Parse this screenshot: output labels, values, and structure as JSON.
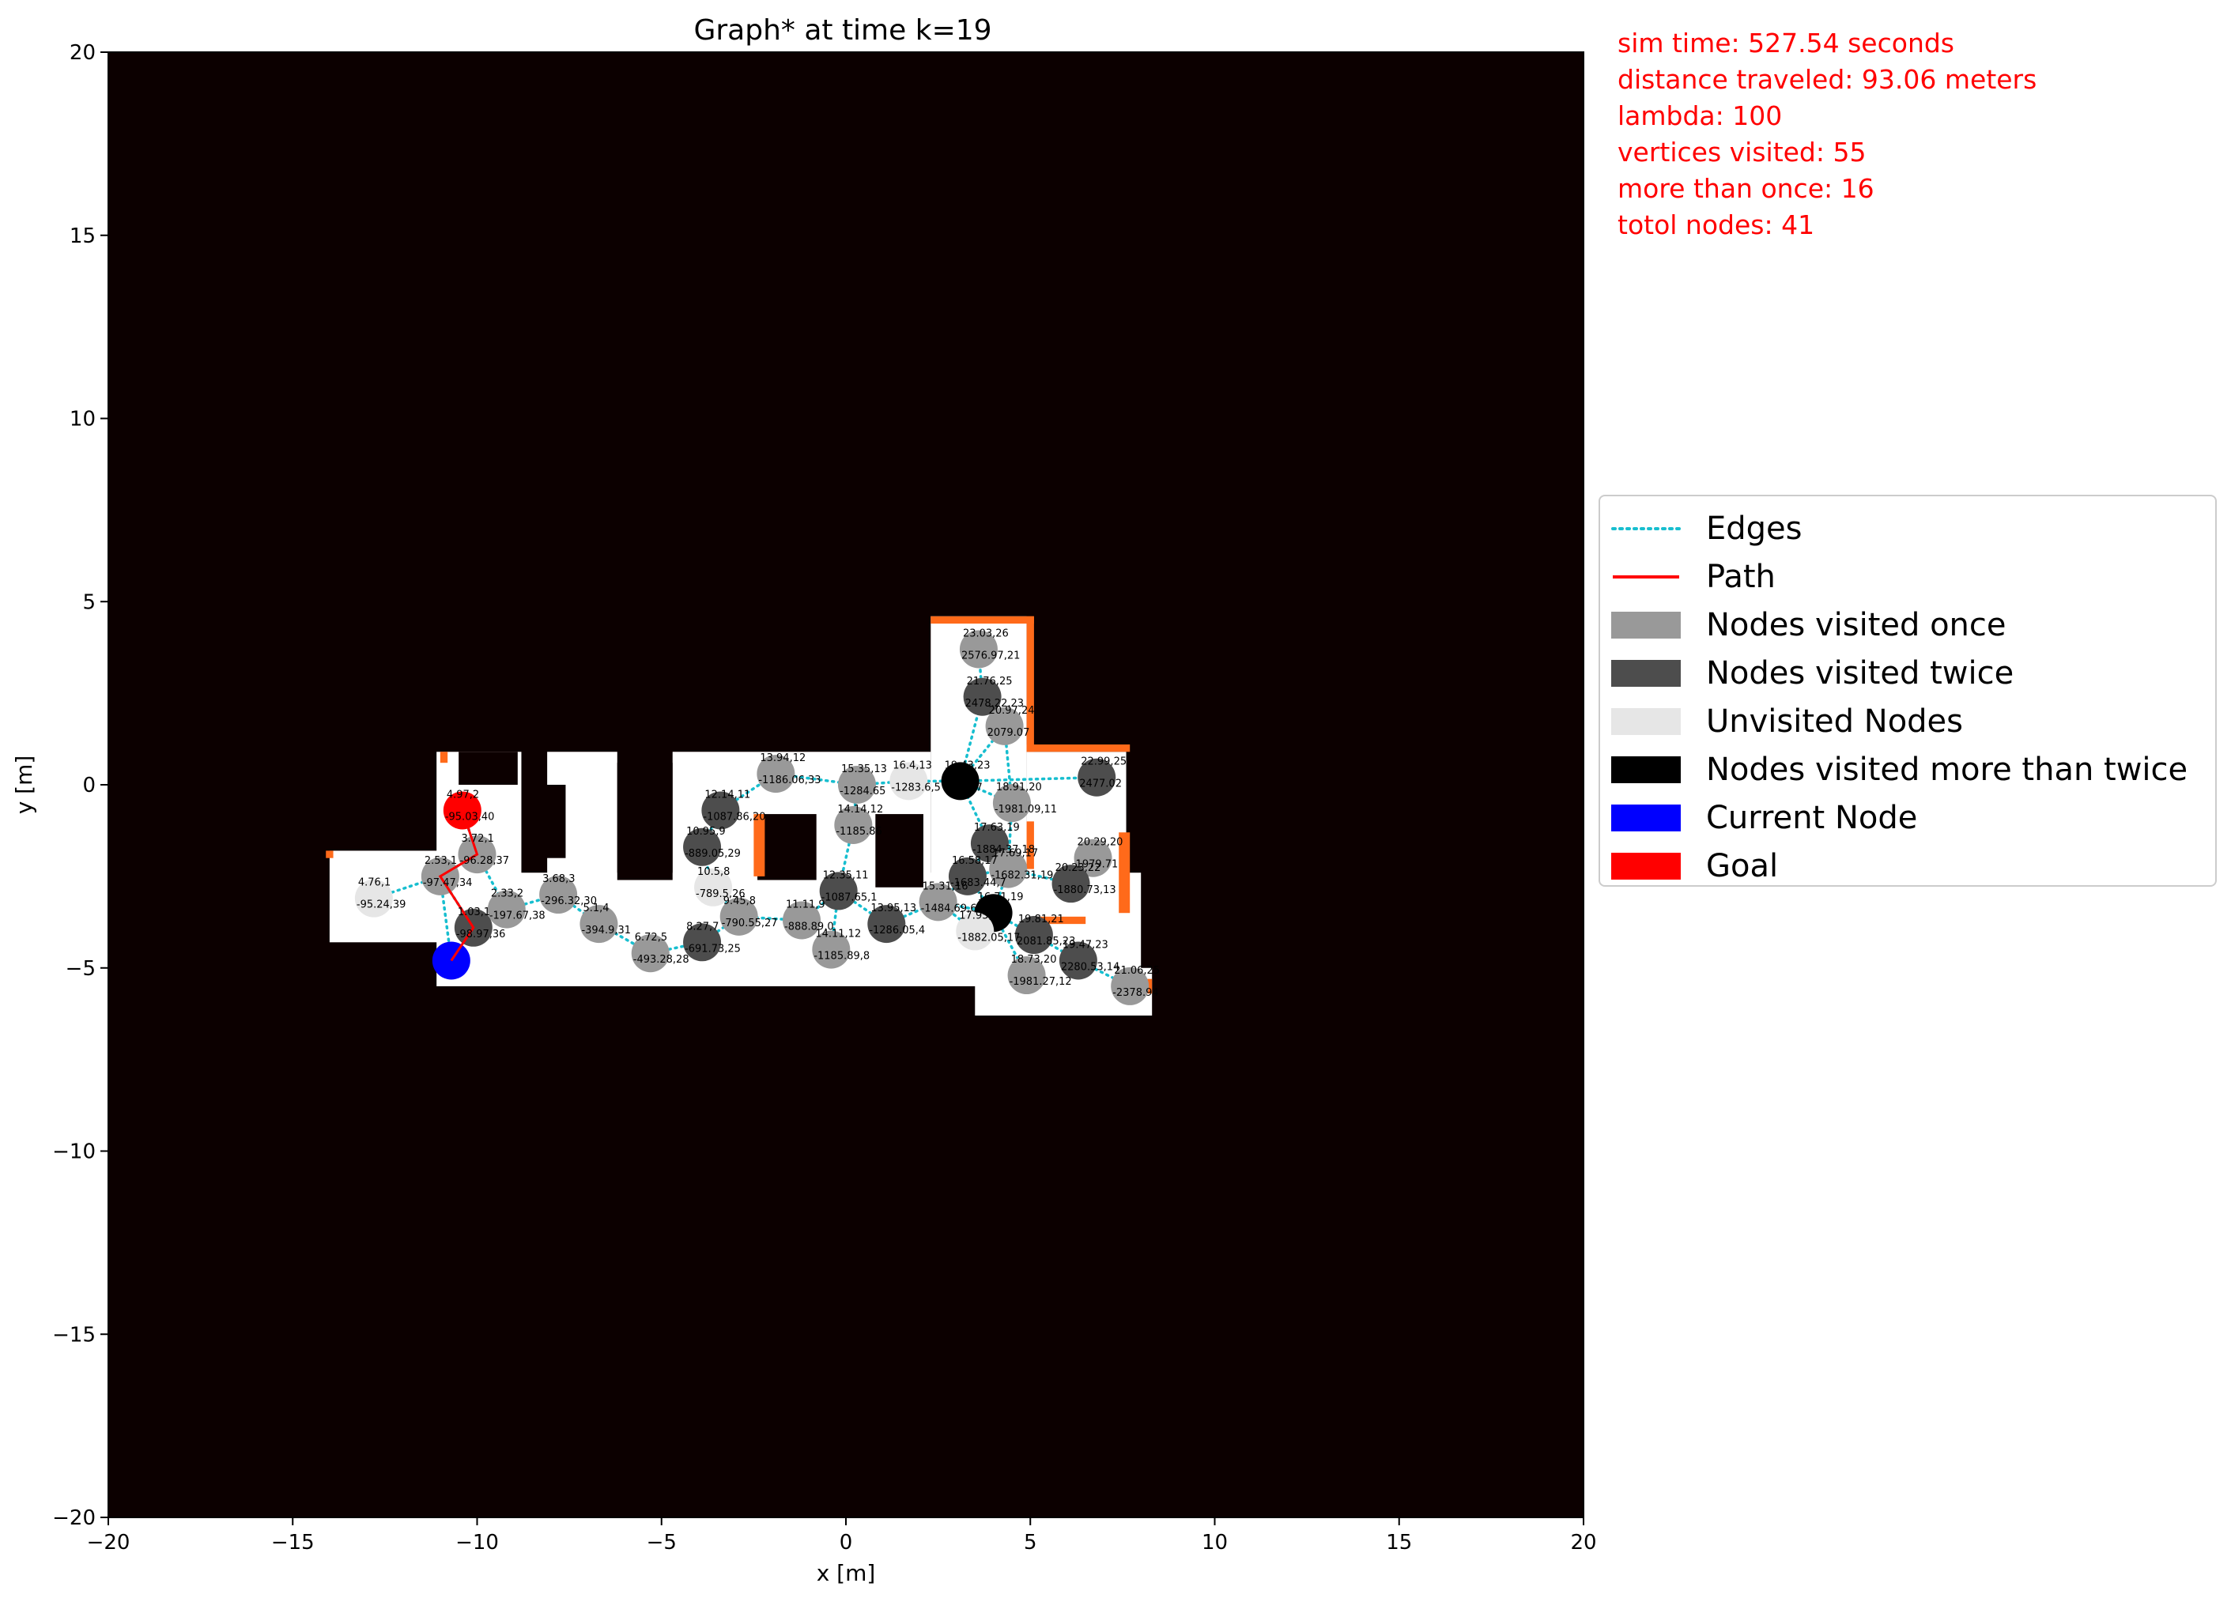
{
  "chart_data": {
    "type": "scatter",
    "title": "Graph* at time k=19",
    "xlabel": "x [m]",
    "ylabel": "y [m]",
    "xlim": [
      -20,
      20
    ],
    "ylim": [
      -20,
      20
    ],
    "xticks": [
      -20,
      -15,
      -10,
      -5,
      0,
      5,
      10,
      15,
      20
    ],
    "yticks": [
      -20,
      -15,
      -10,
      -5,
      0,
      5,
      10,
      15,
      20
    ],
    "grid": false,
    "legend_position": "center-right outside",
    "colors": {
      "background": "#0c0000",
      "free_space": "#ffffff",
      "boundary": "#ff6a1a",
      "edges": "#17becf",
      "path": "#ff0000",
      "visited_once": "#999999",
      "visited_twice": "#4d4d4d",
      "unvisited": "#e6e6e6",
      "visited_more": "#000000",
      "current": "#0000ff",
      "goal": "#ff0000"
    },
    "free_regions": [
      {
        "x": [
          -14.0,
          -10.0
        ],
        "y": [
          -4.3,
          -1.8
        ]
      },
      {
        "x": [
          -11.1,
          8.0
        ],
        "y": [
          -5.5,
          -2.4
        ]
      },
      {
        "x": [
          -11.1,
          -8.8
        ],
        "y": [
          -3.0,
          0.9
        ]
      },
      {
        "x": [
          -8.1,
          -6.2
        ],
        "y": [
          -2.6,
          0.9
        ]
      },
      {
        "x": [
          -4.7,
          2.3
        ],
        "y": [
          -2.6,
          0.9
        ]
      },
      {
        "x": [
          2.3,
          4.9
        ],
        "y": [
          -2.6,
          4.6
        ]
      },
      {
        "x": [
          4.9,
          7.6
        ],
        "y": [
          -3.7,
          0.9
        ]
      },
      {
        "x": [
          3.5,
          8.3
        ],
        "y": [
          -6.3,
          -5.0
        ]
      },
      {
        "x": [
          5.4,
          7.9
        ],
        "y": [
          -5.2,
          -3.8
        ]
      }
    ],
    "obstacles": [
      {
        "x": [
          -2.4,
          -0.8
        ],
        "y": [
          -2.6,
          -0.8
        ]
      },
      {
        "x": [
          0.8,
          2.1
        ],
        "y": [
          -2.8,
          -0.8
        ]
      },
      {
        "x": [
          -8.6,
          -7.6
        ],
        "y": [
          -2.0,
          0.0
        ]
      },
      {
        "x": [
          -6.2,
          -4.7
        ],
        "y": [
          -2.6,
          0.6
        ]
      },
      {
        "x": [
          -10.5,
          -8.9
        ],
        "y": [
          0.0,
          0.9
        ]
      }
    ],
    "boundaries": [
      {
        "x": [
          2.3,
          5.1
        ],
        "y": [
          4.4,
          4.6
        ]
      },
      {
        "x": [
          4.9,
          5.1
        ],
        "y": [
          0.9,
          4.6
        ]
      },
      {
        "x": [
          4.9,
          7.7
        ],
        "y": [
          0.9,
          1.1
        ]
      },
      {
        "x": [
          7.4,
          7.7
        ],
        "y": [
          -3.5,
          -1.3
        ]
      },
      {
        "x": [
          -2.5,
          -2.2
        ],
        "y": [
          -2.5,
          -0.8
        ]
      },
      {
        "x": [
          4.9,
          5.1
        ],
        "y": [
          -2.3,
          -1.0
        ]
      },
      {
        "x": [
          -14.1,
          -13.9
        ],
        "y": [
          -2.0,
          -1.8
        ]
      },
      {
        "x": [
          -11.0,
          -10.8
        ],
        "y": [
          0.6,
          0.9
        ]
      },
      {
        "x": [
          7.9,
          8.3
        ],
        "y": [
          -5.7,
          -5.3
        ]
      },
      {
        "x": [
          5.0,
          6.5
        ],
        "y": [
          -3.8,
          -3.6
        ]
      }
    ],
    "nodes": [
      {
        "x": 3.6,
        "y": 3.7,
        "state": "visited_once",
        "label1": "23.03,26",
        "label2": "2576.97,21"
      },
      {
        "x": 3.7,
        "y": 2.4,
        "state": "visited_twice",
        "label1": "21.76,25",
        "label2": "2478.22,23"
      },
      {
        "x": 4.3,
        "y": 1.6,
        "state": "visited_once",
        "label1": "20.97,24",
        "label2": "2079.07"
      },
      {
        "x": 3.1,
        "y": 0.1,
        "state": "visited_more",
        "label1": "19.43,23",
        "label2": "-1755.7"
      },
      {
        "x": 4.5,
        "y": -0.5,
        "state": "visited_once",
        "label1": "18.91,20",
        "label2": "-1981.09,11"
      },
      {
        "x": 6.8,
        "y": 0.2,
        "state": "visited_twice",
        "label1": "22.99,25",
        "label2": "2477.02"
      },
      {
        "x": 6.7,
        "y": -2.0,
        "state": "visited_once",
        "label1": "20.29,20",
        "label2": "1979.71"
      },
      {
        "x": 6.1,
        "y": -2.7,
        "state": "visited_twice",
        "label1": "20.23,22",
        "label2": "-1880.73,13"
      },
      {
        "x": 3.9,
        "y": -1.6,
        "state": "visited_twice",
        "label1": "17.63,19",
        "label2": "-1884.37,18"
      },
      {
        "x": 4.4,
        "y": -2.3,
        "state": "visited_once",
        "label1": "17.69,17",
        "label2": "-1682.31,19"
      },
      {
        "x": 3.3,
        "y": -2.5,
        "state": "visited_twice",
        "label1": "16.58,17",
        "label2": "-1683.44,7"
      },
      {
        "x": 4.0,
        "y": -3.5,
        "state": "visited_more",
        "label1": "16.71,19",
        "label2": ""
      },
      {
        "x": 2.5,
        "y": -3.2,
        "state": "visited_once",
        "label1": "15.31,16",
        "label2": "-1484.69,6"
      },
      {
        "x": 3.5,
        "y": -4.0,
        "state": "unvisited",
        "label1": "17.95,19",
        "label2": "-1882.05,17"
      },
      {
        "x": 5.1,
        "y": -4.1,
        "state": "visited_twice",
        "label1": "19.81,21",
        "label2": "2081.85,23"
      },
      {
        "x": 4.9,
        "y": -5.2,
        "state": "visited_once",
        "label1": "18.73,20",
        "label2": "-1981.27,12"
      },
      {
        "x": 6.3,
        "y": -4.8,
        "state": "visited_twice",
        "label1": "19.47,23",
        "label2": "2280.53,14"
      },
      {
        "x": 7.7,
        "y": -5.5,
        "state": "visited_once",
        "label1": "21.06,25",
        "label2": "-2378.94"
      },
      {
        "x": 1.1,
        "y": -3.8,
        "state": "visited_twice",
        "label1": "13.95,13",
        "label2": "-1286.05,4"
      },
      {
        "x": -0.2,
        "y": -2.9,
        "state": "visited_twice",
        "label1": "12.35,11",
        "label2": "-1087.65,1"
      },
      {
        "x": 0.2,
        "y": -1.1,
        "state": "visited_once",
        "label1": "14.14,12",
        "label2": "-1185.86"
      },
      {
        "x": 0.3,
        "y": 0.0,
        "state": "visited_once",
        "label1": "15.35,13",
        "label2": "-1284.65"
      },
      {
        "x": 1.7,
        "y": 0.1,
        "state": "unvisited",
        "label1": "16.4,13",
        "label2": "-1283.6,5"
      },
      {
        "x": -1.9,
        "y": 0.3,
        "state": "visited_once",
        "label1": "13.94,12",
        "label2": "-1186.06,33"
      },
      {
        "x": -3.4,
        "y": -0.7,
        "state": "visited_twice",
        "label1": "12.14,11",
        "label2": "-1087.86,20"
      },
      {
        "x": -3.9,
        "y": -1.7,
        "state": "visited_twice",
        "label1": "10.95,9",
        "label2": "-889.05,29"
      },
      {
        "x": -3.6,
        "y": -2.8,
        "state": "unvisited",
        "label1": "10.5,8",
        "label2": "-789.5,26"
      },
      {
        "x": -2.9,
        "y": -3.6,
        "state": "visited_once",
        "label1": "9.45,8",
        "label2": "-790.55,27"
      },
      {
        "x": -1.2,
        "y": -3.7,
        "state": "visited_once",
        "label1": "11.11,9",
        "label2": "-888.89,0"
      },
      {
        "x": -0.4,
        "y": -4.5,
        "state": "visited_once",
        "label1": "14.11,12",
        "label2": "-1185.89,8"
      },
      {
        "x": -3.9,
        "y": -4.3,
        "state": "visited_twice",
        "label1": "8.27,7",
        "label2": "-691.73,25"
      },
      {
        "x": -5.3,
        "y": -4.6,
        "state": "visited_once",
        "label1": "6.72,5",
        "label2": "-493.28,28"
      },
      {
        "x": -6.7,
        "y": -3.8,
        "state": "visited_once",
        "label1": "5.1,4",
        "label2": "-394.9,31"
      },
      {
        "x": -7.8,
        "y": -3.0,
        "state": "visited_once",
        "label1": "3.68,3",
        "label2": "-296.32,30"
      },
      {
        "x": -9.2,
        "y": -3.4,
        "state": "visited_once",
        "label1": "2.33,2",
        "label2": "-197.67,38"
      },
      {
        "x": -12.8,
        "y": -3.1,
        "state": "unvisited",
        "label1": "4.76,1",
        "label2": "-95.24,39"
      },
      {
        "x": -11.0,
        "y": -2.5,
        "state": "visited_once",
        "label1": "2.53,1",
        "label2": "-97.47,34"
      },
      {
        "x": -10.0,
        "y": -1.9,
        "state": "visited_once",
        "label1": "3.72,1",
        "label2": "-96.28,37"
      },
      {
        "x": -10.1,
        "y": -3.9,
        "state": "visited_twice",
        "label1": "1.03,1",
        "label2": "-98.97,36"
      },
      {
        "x": -10.4,
        "y": -0.7,
        "state": "goal",
        "label1": "4.97,2",
        "label2": "-95.03,40"
      },
      {
        "x": -10.7,
        "y": -4.8,
        "state": "current",
        "label1": "",
        "label2": ""
      }
    ],
    "edges": [
      [
        35,
        36
      ],
      [
        36,
        37
      ],
      [
        37,
        39
      ],
      [
        36,
        40
      ],
      [
        36,
        38
      ],
      [
        37,
        34
      ],
      [
        34,
        33
      ],
      [
        33,
        32
      ],
      [
        32,
        31
      ],
      [
        31,
        30
      ],
      [
        30,
        27
      ],
      [
        27,
        26
      ],
      [
        26,
        25
      ],
      [
        25,
        24
      ],
      [
        24,
        23
      ],
      [
        23,
        21
      ],
      [
        21,
        22
      ],
      [
        21,
        20
      ],
      [
        20,
        19
      ],
      [
        19,
        28
      ],
      [
        28,
        27
      ],
      [
        19,
        29
      ],
      [
        19,
        18
      ],
      [
        18,
        12
      ],
      [
        12,
        10
      ],
      [
        10,
        9
      ],
      [
        10,
        8
      ],
      [
        8,
        3
      ],
      [
        3,
        4
      ],
      [
        3,
        5
      ],
      [
        3,
        2
      ],
      [
        3,
        1
      ],
      [
        1,
        0
      ],
      [
        4,
        9
      ],
      [
        9,
        7
      ],
      [
        7,
        6
      ],
      [
        11,
        10
      ],
      [
        11,
        12
      ],
      [
        11,
        13
      ],
      [
        11,
        14
      ],
      [
        11,
        15
      ],
      [
        14,
        16
      ],
      [
        16,
        17
      ],
      [
        13,
        12
      ],
      [
        9,
        11
      ],
      [
        2,
        4
      ],
      [
        22,
        3
      ]
    ],
    "path": [
      [
        -10.7,
        -4.8
      ],
      [
        -10.1,
        -3.9
      ],
      [
        -11.0,
        -2.5
      ],
      [
        -10.0,
        -1.9
      ],
      [
        -10.4,
        -0.7
      ]
    ]
  },
  "stats": [
    "sim time: 527.54 seconds",
    "distance traveled: 93.06 meters",
    "lambda: 100",
    "vertices visited: 55",
    "more than once: 16",
    "totol nodes: 41"
  ],
  "legend": [
    {
      "label": "Edges",
      "kind": "dotted",
      "color": "#17becf"
    },
    {
      "label": "Path",
      "kind": "line",
      "color": "#ff0000"
    },
    {
      "label": "Nodes visited once",
      "kind": "patch",
      "color": "#999999"
    },
    {
      "label": "Nodes visited twice",
      "kind": "patch",
      "color": "#4d4d4d"
    },
    {
      "label": "Unvisited Nodes",
      "kind": "patch",
      "color": "#e6e6e6"
    },
    {
      "label": "Nodes visited more than twice",
      "kind": "patch",
      "color": "#000000"
    },
    {
      "label": "Current Node",
      "kind": "patch",
      "color": "#0000ff"
    },
    {
      "label": "Goal",
      "kind": "patch",
      "color": "#ff0000"
    }
  ]
}
